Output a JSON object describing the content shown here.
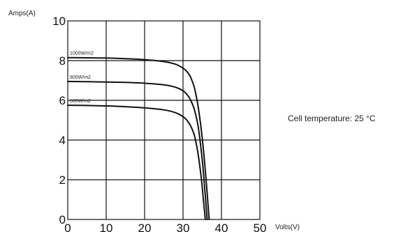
{
  "chart_data": {
    "type": "line",
    "title": "",
    "xlabel": "Volts(V)",
    "ylabel": "Amps(A)",
    "xlim": [
      0,
      50
    ],
    "ylim": [
      0,
      10
    ],
    "x_ticks": [
      "0",
      "10",
      "20",
      "30",
      "40",
      "50"
    ],
    "y_ticks": [
      "0",
      "2",
      "4",
      "6",
      "8",
      "10"
    ],
    "grid": true,
    "annotation": "Cell temperature: 25 °C",
    "series": [
      {
        "name": "1000W/m2",
        "x": [
          0,
          5,
          10,
          15,
          20,
          25,
          28,
          30,
          31,
          32,
          33,
          34,
          35,
          36,
          36.8
        ],
        "y": [
          8.15,
          8.14,
          8.13,
          8.1,
          8.05,
          7.95,
          7.82,
          7.62,
          7.45,
          7.15,
          6.6,
          5.6,
          4.1,
          2.0,
          0
        ]
      },
      {
        "name": "800W/m2",
        "x": [
          0,
          5,
          10,
          15,
          20,
          25,
          28,
          30,
          31,
          32,
          33,
          34,
          35,
          35.7,
          36.3
        ],
        "y": [
          6.95,
          6.94,
          6.92,
          6.9,
          6.86,
          6.78,
          6.66,
          6.48,
          6.3,
          6.0,
          5.5,
          4.6,
          3.0,
          1.4,
          0
        ]
      },
      {
        "name": "600W/m2",
        "x": [
          0,
          5,
          10,
          15,
          20,
          25,
          28,
          30,
          31,
          32,
          33,
          34,
          34.8,
          35.3,
          35.8
        ],
        "y": [
          5.75,
          5.74,
          5.72,
          5.68,
          5.62,
          5.52,
          5.38,
          5.18,
          5.0,
          4.7,
          4.2,
          3.2,
          2.0,
          1.0,
          0
        ]
      }
    ]
  },
  "colors": {
    "ink": "#111111",
    "background": "#ffffff"
  }
}
